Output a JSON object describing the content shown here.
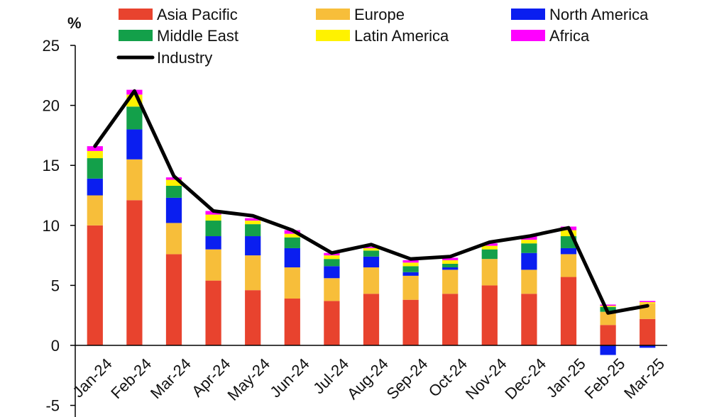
{
  "chart_data": {
    "type": "bar",
    "stacked": true,
    "ylabel": "%",
    "ylim": [
      -5,
      25
    ],
    "yticks": [
      "-5",
      "0",
      "5",
      "10",
      "15",
      "20",
      "25"
    ],
    "categories": [
      "Jan-24",
      "Feb-24",
      "Mar-24",
      "Apr-24",
      "May-24",
      "Jun-24",
      "Jul-24",
      "Aug-24",
      "Sep-24",
      "Oct-24",
      "Nov-24",
      "Dec-24",
      "Jan-25",
      "Feb-25",
      "Mar-25"
    ],
    "series": [
      {
        "name": "Asia Pacific",
        "color": "#E8432E",
        "values": [
          10.0,
          12.1,
          7.6,
          5.4,
          4.6,
          3.9,
          3.7,
          4.3,
          3.8,
          4.3,
          5.0,
          4.3,
          5.7,
          1.7,
          2.2
        ]
      },
      {
        "name": "Europe",
        "color": "#F7BE3A",
        "values": [
          2.5,
          3.4,
          2.6,
          2.6,
          2.9,
          2.6,
          1.9,
          2.2,
          2.0,
          2.0,
          2.2,
          2.0,
          1.9,
          1.1,
          1.3
        ]
      },
      {
        "name": "North America",
        "color": "#0A1EF0",
        "values": [
          1.4,
          2.5,
          2.1,
          1.1,
          1.6,
          1.6,
          1.0,
          0.9,
          0.3,
          0.2,
          0.0,
          1.4,
          0.5,
          -0.8,
          -0.2
        ]
      },
      {
        "name": "Middle East",
        "color": "#13A04A",
        "values": [
          1.7,
          1.9,
          1.0,
          1.3,
          1.0,
          0.9,
          0.6,
          0.5,
          0.5,
          0.3,
          0.8,
          0.8,
          1.0,
          0.4,
          0.0
        ]
      },
      {
        "name": "Latin America",
        "color": "#FFF200",
        "values": [
          0.6,
          1.0,
          0.5,
          0.5,
          0.3,
          0.3,
          0.3,
          0.2,
          0.3,
          0.3,
          0.3,
          0.3,
          0.5,
          0.1,
          0.1
        ]
      },
      {
        "name": "Africa",
        "color": "#FF00FF",
        "values": [
          0.4,
          0.4,
          0.2,
          0.3,
          0.2,
          0.3,
          0.2,
          0.1,
          0.2,
          0.2,
          0.2,
          0.3,
          0.3,
          0.1,
          0.1
        ]
      }
    ],
    "line_series": {
      "name": "Industry",
      "color": "#000000",
      "values": [
        16.6,
        21.2,
        14.1,
        11.2,
        10.8,
        9.6,
        7.7,
        8.4,
        7.2,
        7.4,
        8.6,
        9.1,
        9.8,
        2.7,
        3.3
      ]
    },
    "legend": {
      "position": "top",
      "columns": 3
    },
    "grid": false
  }
}
